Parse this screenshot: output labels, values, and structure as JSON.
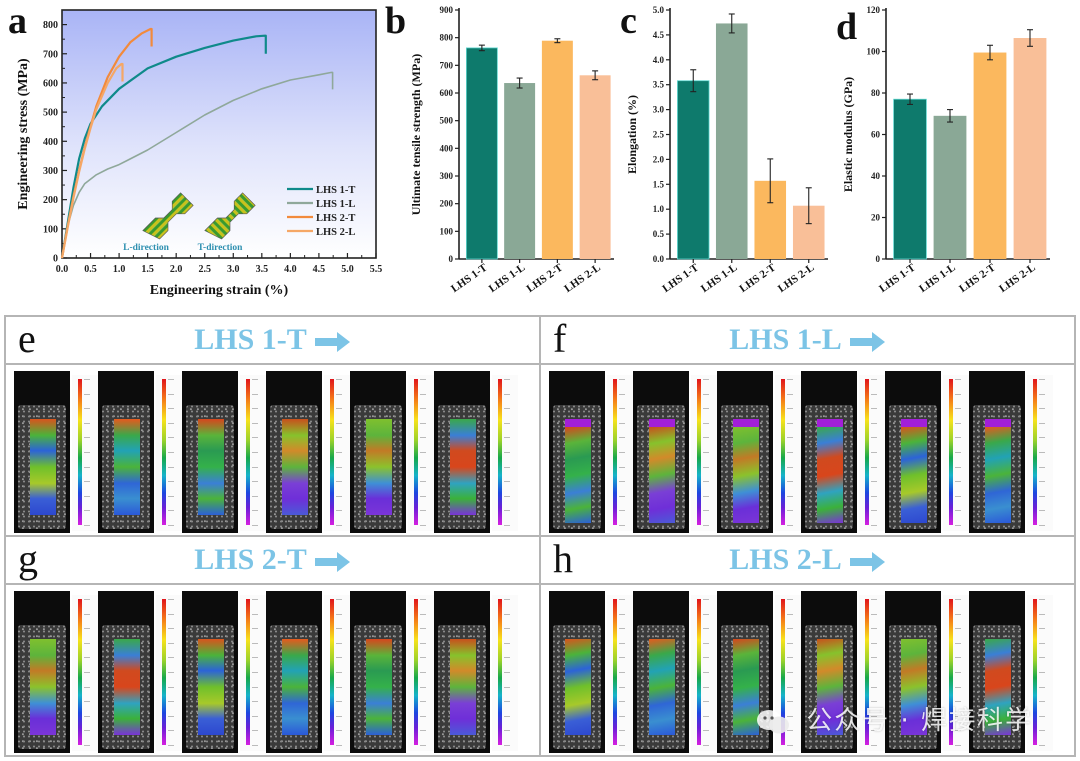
{
  "panels": {
    "a": "a",
    "b": "b",
    "c": "c",
    "d": "d",
    "e": "e",
    "f": "f",
    "g": "g",
    "h": "h"
  },
  "colors": {
    "LHS 1-T": "#0e7a6c",
    "LHS 1-L": "#8aa896",
    "LHS 2-T": "#fbb85e",
    "LHS 2-L": "#f9bf98",
    "curve_LHS 1-T": "#0f8a8a",
    "curve_LHS 1-L": "#8fa89a",
    "curve_LHS 2-T": "#f28a3c",
    "curve_LHS 2-L": "#f5a766",
    "dic_title": "#7cc4e6"
  },
  "chart_data": [
    {
      "id": "a",
      "type": "line",
      "title": "",
      "xlabel": "Engineering strain (%)",
      "ylabel": "Engineering stress (MPa)",
      "xlim": [
        0,
        5.5
      ],
      "ylim": [
        0,
        850
      ],
      "xticks": [
        "0.0",
        "0.5",
        "1.0",
        "1.5",
        "2.0",
        "2.5",
        "3.0",
        "3.5",
        "4.0",
        "4.5",
        "5.0",
        "5.5"
      ],
      "yticks": [
        "0",
        "100",
        "200",
        "300",
        "400",
        "500",
        "600",
        "700",
        "800"
      ],
      "legend_position": "bottom-right",
      "background": "blue-to-white gradient",
      "inset_labels": [
        "L-direction",
        "T-direction"
      ],
      "series": [
        {
          "name": "LHS 1-T",
          "x": [
            0,
            0.1,
            0.2,
            0.3,
            0.4,
            0.5,
            0.7,
            1.0,
            1.5,
            2.0,
            2.5,
            3.0,
            3.4,
            3.55,
            3.57,
            3.57
          ],
          "y": [
            0,
            120,
            240,
            340,
            410,
            460,
            520,
            580,
            650,
            690,
            720,
            745,
            760,
            762,
            762,
            700
          ]
        },
        {
          "name": "LHS 1-L",
          "x": [
            0,
            0.1,
            0.2,
            0.3,
            0.4,
            0.6,
            0.8,
            1.0,
            1.5,
            2.0,
            2.5,
            3.0,
            3.5,
            4.0,
            4.5,
            4.72,
            4.74,
            4.74
          ],
          "y": [
            0,
            110,
            180,
            225,
            255,
            285,
            305,
            320,
            370,
            430,
            490,
            540,
            580,
            610,
            628,
            636,
            636,
            578
          ]
        },
        {
          "name": "LHS 2-T",
          "x": [
            0,
            0.1,
            0.2,
            0.3,
            0.4,
            0.5,
            0.6,
            0.8,
            1.0,
            1.2,
            1.4,
            1.55,
            1.57,
            1.57
          ],
          "y": [
            0,
            110,
            210,
            300,
            380,
            450,
            520,
            620,
            690,
            740,
            770,
            785,
            785,
            725
          ]
        },
        {
          "name": "LHS 2-L",
          "x": [
            0,
            0.1,
            0.2,
            0.3,
            0.4,
            0.5,
            0.6,
            0.8,
            0.95,
            1.04,
            1.06,
            1.06
          ],
          "y": [
            0,
            105,
            205,
            295,
            375,
            445,
            510,
            600,
            650,
            665,
            665,
            605
          ]
        }
      ]
    },
    {
      "id": "b",
      "type": "bar",
      "ylabel": "Ultimate tensile strength (MPa)",
      "ylim": [
        0,
        900
      ],
      "yticks": [
        "0",
        "100",
        "200",
        "300",
        "400",
        "500",
        "600",
        "700",
        "800",
        "900"
      ],
      "categories": [
        "LHS 1-T",
        "LHS 1-L",
        "LHS 2-T",
        "LHS 2-L"
      ],
      "values": [
        763,
        636,
        789,
        664
      ],
      "errors": [
        10,
        18,
        7,
        16
      ]
    },
    {
      "id": "c",
      "type": "bar",
      "ylabel": "Elongation (%)",
      "ylim": [
        0,
        5.0
      ],
      "yticks": [
        "0.0",
        "0.5",
        "1.0",
        "1.5",
        "2.0",
        "2.5",
        "3.0",
        "3.5",
        "4.0",
        "4.5",
        "5.0"
      ],
      "categories": [
        "LHS 1-T",
        "LHS 1-L",
        "LHS 2-T",
        "LHS 2-L"
      ],
      "values": [
        3.58,
        4.73,
        1.57,
        1.07
      ],
      "errors": [
        0.22,
        0.19,
        0.44,
        0.36
      ]
    },
    {
      "id": "d",
      "type": "bar",
      "ylabel": "Elastic modulus (GPa)",
      "ylim": [
        0,
        120
      ],
      "yticks": [
        "0",
        "20",
        "40",
        "60",
        "80",
        "100",
        "120"
      ],
      "categories": [
        "LHS 1-T",
        "LHS 1-L",
        "LHS 2-T",
        "LHS 2-L"
      ],
      "values": [
        77,
        69,
        99.5,
        106.5
      ],
      "errors": [
        2.5,
        3,
        3.5,
        4
      ]
    }
  ],
  "dic_panels": [
    {
      "letter": "e",
      "title": "LHS 1-T",
      "frames": 6,
      "specimen_shape": "T"
    },
    {
      "letter": "f",
      "title": "LHS 1-L",
      "frames": 6,
      "specimen_shape": "L"
    },
    {
      "letter": "g",
      "title": "LHS 2-T",
      "frames": 6,
      "specimen_shape": "T"
    },
    {
      "letter": "h",
      "title": "LHS 2-L",
      "frames": 6,
      "specimen_shape": "L"
    }
  ],
  "dic_arrow_icon": "right-arrow-icon",
  "watermark": "公众号 · 焊接科学"
}
